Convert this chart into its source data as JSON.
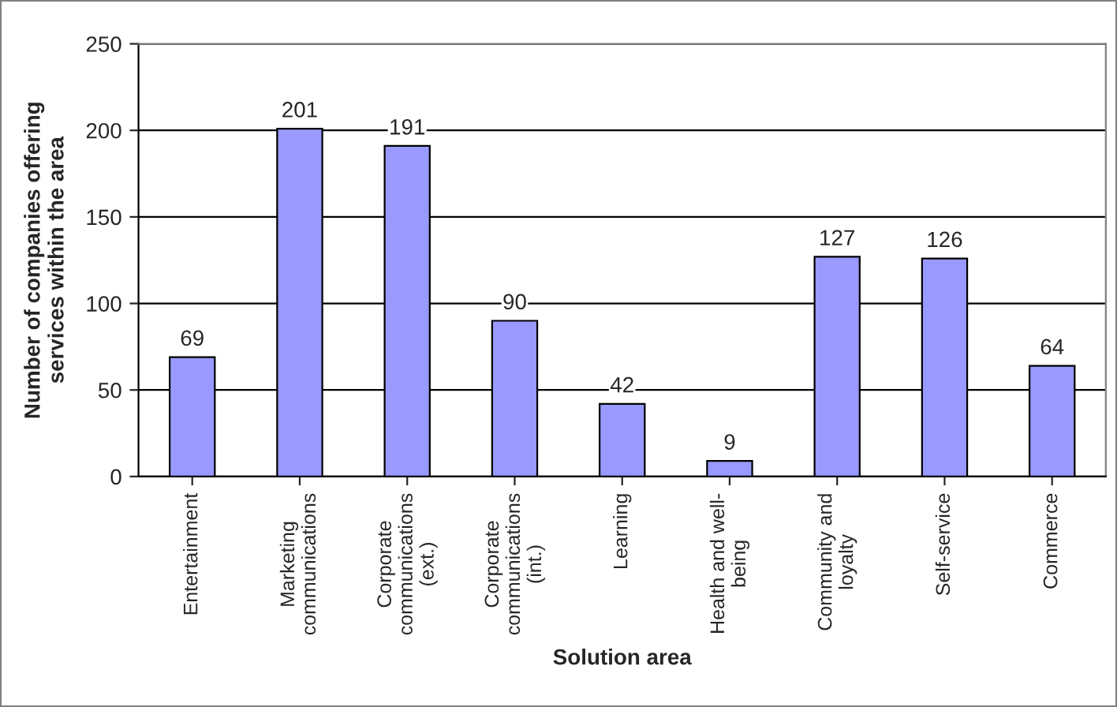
{
  "chart_data": {
    "type": "bar",
    "xlabel": "Solution area",
    "ylabel": "Number of companies offering\nservices within the area",
    "categories": [
      "Entertainment",
      "Marketing\ncommunications",
      "Corporate\ncommunications\n(ext.)",
      "Corporate\ncommunications\n(int.)",
      "Learning",
      "Health and well-\nbeing",
      "Community and\nloyalty",
      "Self-service",
      "Commerce"
    ],
    "values": [
      69,
      201,
      191,
      90,
      42,
      9,
      127,
      126,
      64
    ],
    "color": "#9999ff",
    "ylim": [
      0,
      250
    ],
    "yticks": [
      0,
      50,
      100,
      150,
      200,
      250
    ],
    "grid": "y",
    "data_labels": true
  }
}
